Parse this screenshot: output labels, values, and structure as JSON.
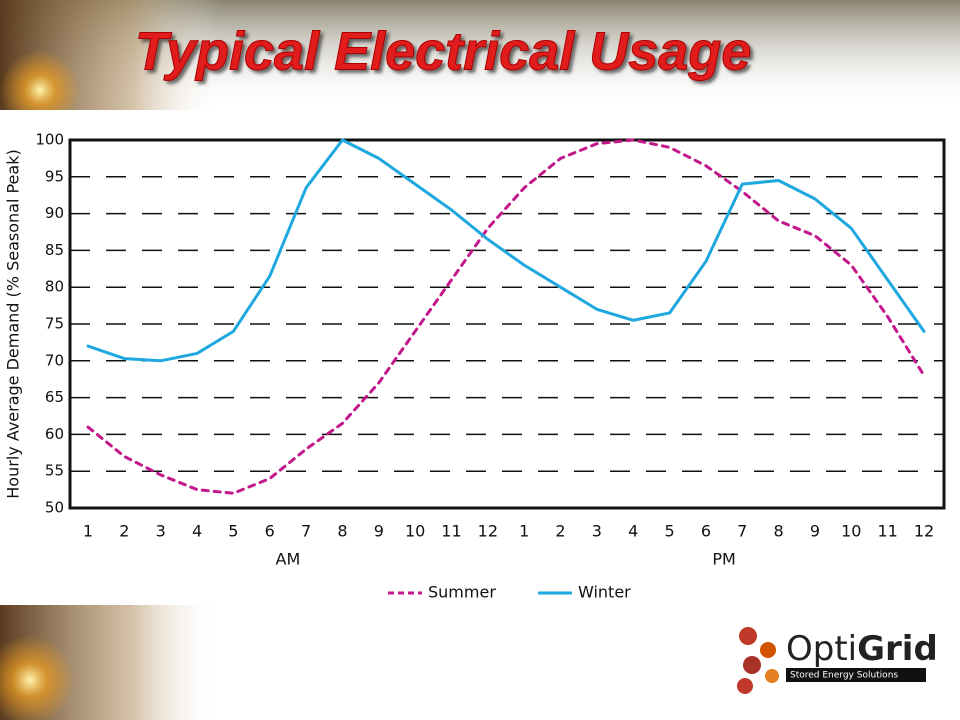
{
  "chart_data": {
    "type": "line",
    "title": "Typical Electrical Usage",
    "y_label": "Hourly Average Demand (% Seasonal Peak)",
    "categories": [
      "1",
      "2",
      "3",
      "4",
      "5",
      "6",
      "7",
      "8",
      "9",
      "10",
      "11",
      "12",
      "1",
      "2",
      "3",
      "4",
      "5",
      "6",
      "7",
      "8",
      "9",
      "10",
      "11",
      "12"
    ],
    "x_groups": [
      "AM",
      "PM"
    ],
    "series": [
      {
        "name": "Summer",
        "color": "#c3188c",
        "dashed": true,
        "values": [
          61,
          57,
          54.5,
          52.5,
          52,
          54,
          58,
          61.5,
          67,
          74,
          81,
          88,
          93.5,
          97.5,
          99.5,
          100,
          99,
          96.5,
          93,
          89,
          87,
          83,
          76,
          68
        ]
      },
      {
        "name": "Winter",
        "color": "#1ea8df",
        "dashed": false,
        "values": [
          72,
          70.3,
          70,
          71,
          74,
          81.5,
          93.5,
          100,
          97.5,
          94,
          90.5,
          86.5,
          83,
          80,
          77,
          75.5,
          76.5,
          83.5,
          94,
          94.5,
          92,
          88,
          81,
          74
        ]
      }
    ],
    "ylim": [
      50,
      100
    ],
    "yticks": [
      50,
      55,
      60,
      65,
      70,
      75,
      80,
      85,
      90,
      95,
      100
    ],
    "grid": true
  },
  "logo": {
    "name_light": "Opti",
    "name_bold": "Grid",
    "tagline": "Stored Energy Solutions"
  }
}
